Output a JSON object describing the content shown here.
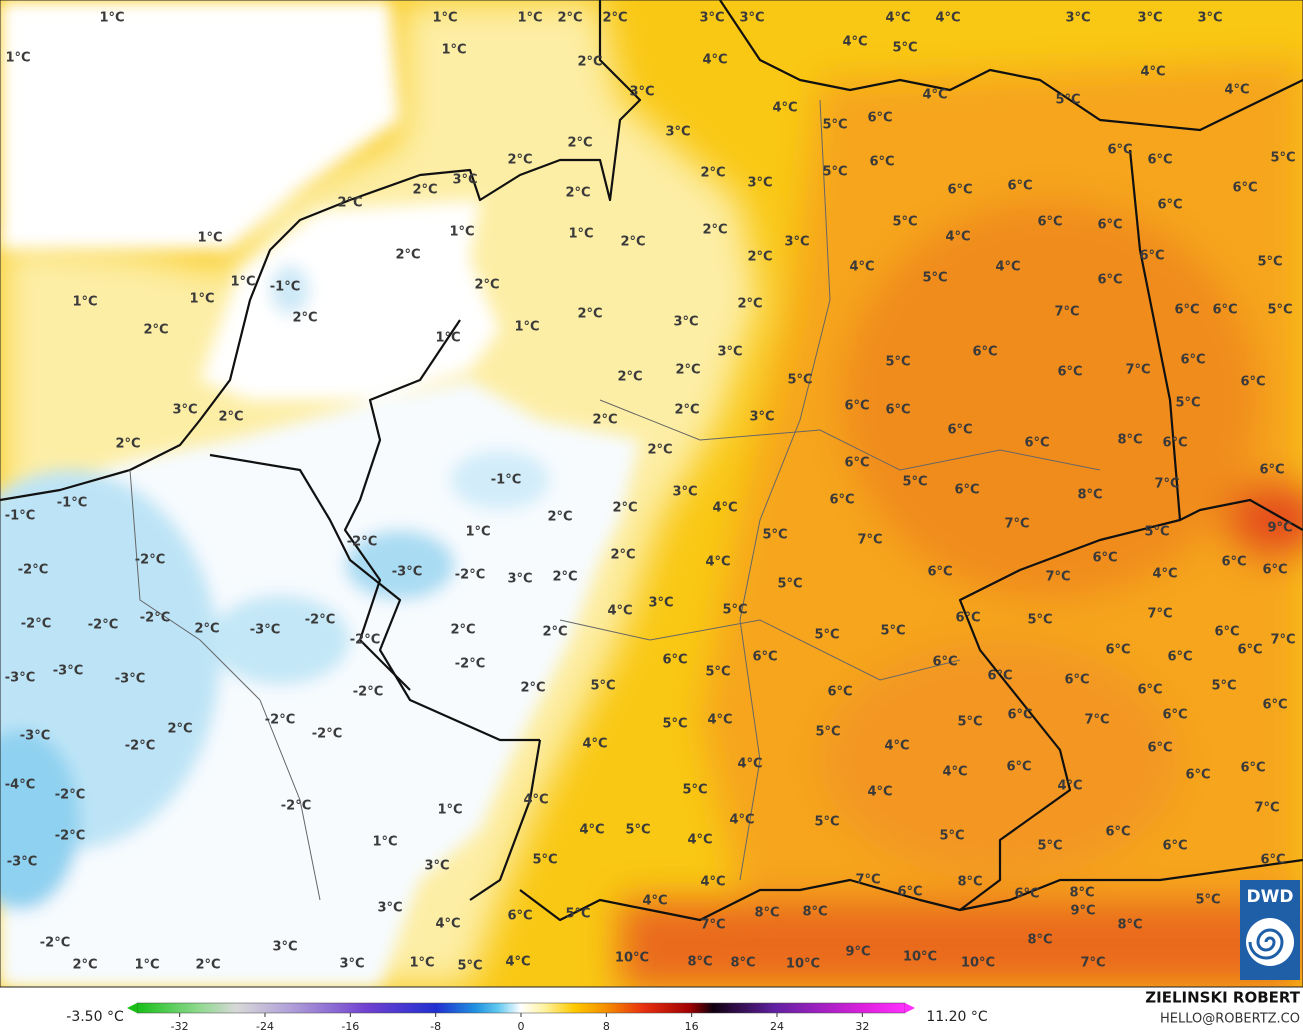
{
  "map": {
    "labels": [
      "1°C",
      "1°C",
      "1°C",
      "1°C",
      "1°C",
      "2°C",
      "2°C",
      "2°C",
      "3°C",
      "4°C",
      "3°C",
      "3°C",
      "4°C",
      "4°C",
      "4°C",
      "5°C",
      "3°C",
      "3°C",
      "3°C",
      "4°C",
      "4°C",
      "5°C",
      "4°C",
      "4°C",
      "3°C",
      "5°C",
      "6°C",
      "2°C",
      "2°C",
      "3°C",
      "5°C",
      "6°C",
      "6°C",
      "6°C",
      "5°C",
      "2°C",
      "3°C",
      "2°C",
      "2°C",
      "2°C",
      "6°C",
      "6°C",
      "6°C",
      "6°C",
      "1°C",
      "1°C",
      "2°C",
      "2°C",
      "3°C",
      "5°C",
      "4°C",
      "6°C",
      "6°C",
      "1°C",
      "2°C",
      "2°C",
      "4°C",
      "5°C",
      "4°C",
      "6°C",
      "5°C",
      "1°C",
      "-1°C",
      "2°C",
      "1°C",
      "1°C",
      "2°C",
      "2°C",
      "1°C",
      "2°C",
      "7°C",
      "6°C",
      "6°C",
      "6°C",
      "5°C",
      "2°C",
      "1°C",
      "3°C",
      "3°C",
      "6°C",
      "5°C",
      "6°C",
      "7°C",
      "6°C",
      "2°C",
      "2°C",
      "5°C",
      "6°C",
      "3°C",
      "2°C",
      "2°C",
      "2°C",
      "3°C",
      "6°C",
      "6°C",
      "5°C",
      "2°C",
      "2°C",
      "6°C",
      "6°C",
      "8°C",
      "6°C",
      "-1°C",
      "6°C",
      "6°C",
      "3°C",
      "5°C",
      "6°C",
      "8°C",
      "7°C",
      "-1°C",
      "-1°C",
      "6°C",
      "4°C",
      "2°C",
      "1°C",
      "2°C",
      "5°C",
      "7°C",
      "7°C",
      "5°C",
      "9°C",
      "-2°C",
      "-2°C",
      "2°C",
      "4°C",
      "6°C",
      "6°C",
      "6°C",
      "-2°C",
      "-3°C",
      "-2°C",
      "3°C",
      "2°C",
      "6°C",
      "7°C",
      "4°C",
      "5°C",
      "4°C",
      "3°C",
      "5°C",
      "-2°C",
      "-2°C",
      "-2°C",
      "-3°C",
      "-2°C",
      "2°C",
      "6°C",
      "5°C",
      "7°C",
      "6°C",
      "7°C",
      "2°C",
      "2°C",
      "5°C",
      "5°C",
      "-2°C",
      "6°C",
      "6°C",
      "6°C",
      "6°C",
      "6°C",
      "6°C",
      "-3°C",
      "-3°C",
      "-3°C",
      "-2°C",
      "5°C",
      "6°C",
      "6°C",
      "5°C",
      "2°C",
      "6°C",
      "6°C",
      "5°C",
      "-2°C",
      "6°C",
      "4°C",
      "5°C",
      "2°C",
      "-2°C",
      "-2°C",
      "5°C",
      "6°C",
      "7°C",
      "6°C",
      "5°C",
      "-3°C",
      "-2°C",
      "4°C",
      "4°C",
      "6°C",
      "4°C",
      "4°C",
      "6°C",
      "6°C",
      "6°C",
      "-4°C",
      "-2°C",
      "-2°C",
      "4°C",
      "5°C",
      "4°C",
      "4°C",
      "7°C",
      "1°C",
      "4°C",
      "5°C",
      "4°C",
      "4°C",
      "5°C",
      "5°C",
      "6°C",
      "-2°C",
      "1°C",
      "5°C",
      "6°C",
      "-3°C",
      "5°C",
      "3°C",
      "6°C",
      "4°C",
      "7°C",
      "6°C",
      "8°C",
      "6°C",
      "8°C",
      "5°C",
      "3°C",
      "4°C",
      "4°C",
      "6°C",
      "5°C",
      "7°C",
      "8°C",
      "8°C",
      "9°C",
      "8°C",
      "8°C",
      "-2°C",
      "3°C",
      "1°C",
      "10°C",
      "8°C",
      "8°C",
      "10°C",
      "9°C",
      "10°C",
      "10°C",
      "7°C",
      "2°C",
      "1°C",
      "2°C",
      "3°C",
      "5°C",
      "4°C"
    ]
  },
  "colorbar": {
    "min_label": "-3.50 °C",
    "max_label": "11.20 °C",
    "lim": [
      -36,
      36
    ],
    "ticks": [
      -32,
      -24,
      -16,
      -8,
      0,
      8,
      16,
      24,
      32
    ]
  },
  "credits": {
    "author": "ZIELINSKI ROBERT",
    "contact": "HELLO@ROBERTZ.CO",
    "logo": "DWD"
  }
}
